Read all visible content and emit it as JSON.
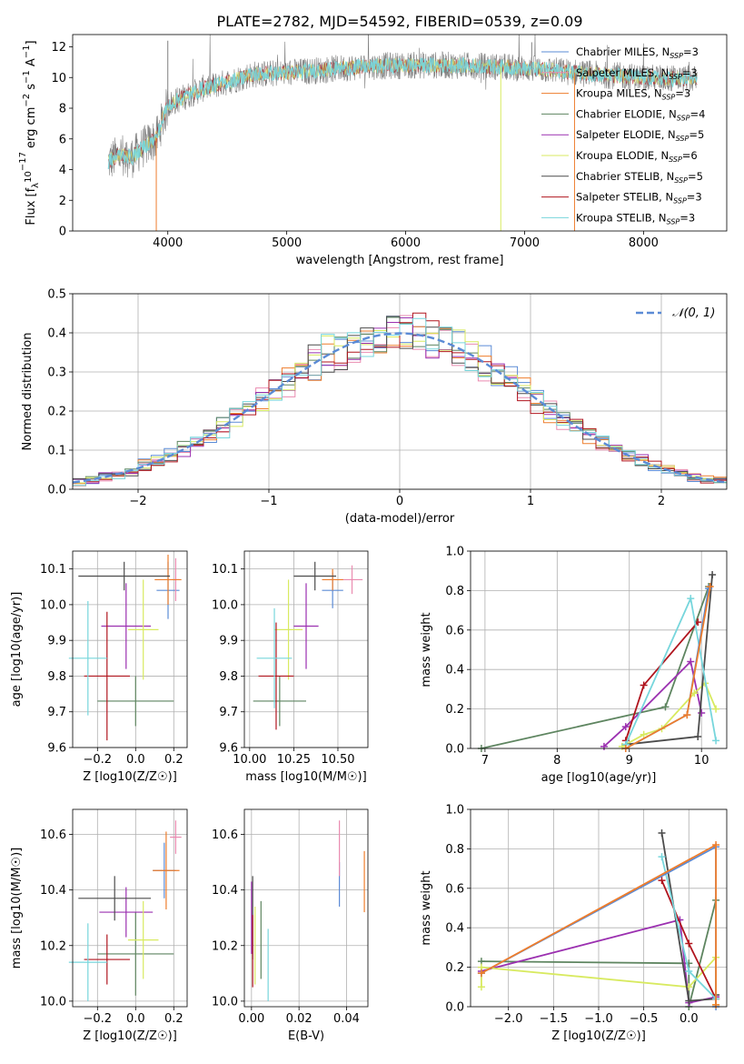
{
  "title": "PLATE=2782, MJD=54592, FIBERID=0539, z=0.09",
  "models": [
    {
      "name": "Chabrier MILES",
      "nssp": "3",
      "color": "#5b8bd6"
    },
    {
      "name": "Salpeter MILES",
      "nssp": "3",
      "color": "#ea8bb0"
    },
    {
      "name": "Kroupa MILES",
      "nssp": "3",
      "color": "#ee7d2c"
    },
    {
      "name": "Chabrier ELODIE",
      "nssp": "4",
      "color": "#5e8560"
    },
    {
      "name": "Salpeter ELODIE",
      "nssp": "5",
      "color": "#9b30b0"
    },
    {
      "name": "Kroupa ELODIE",
      "nssp": "6",
      "color": "#d8ea60"
    },
    {
      "name": "Chabrier STELIB",
      "nssp": "5",
      "color": "#4c4c4c"
    },
    {
      "name": "Salpeter STELIB",
      "nssp": "3",
      "color": "#b0151e"
    },
    {
      "name": "Kroupa STELIB",
      "nssp": "3",
      "color": "#77d6dc"
    }
  ],
  "chart_data": [
    {
      "id": "spectrum",
      "type": "line",
      "xlabel": "wavelength [Angstrom, rest frame]",
      "ylabel": "Flux [f_λ 10^-17 erg cm^-2 s^-1 A^-1]",
      "xlim": [
        3200,
        8700
      ],
      "ylim": [
        0,
        12.8
      ],
      "xticks": [
        4000,
        5000,
        6000,
        7000,
        8000
      ],
      "yticks": [
        0,
        2,
        4,
        6,
        8,
        10,
        12
      ],
      "continuum": {
        "x": [
          3500,
          3600,
          3700,
          3800,
          3900,
          4000,
          4100,
          4300,
          4500,
          4700,
          5000,
          5300,
          5600,
          6000,
          6400,
          6800,
          7200,
          7600,
          8000,
          8400
        ],
        "y": [
          4.5,
          5.0,
          4.8,
          5.5,
          6.0,
          8.2,
          8.6,
          9.3,
          9.7,
          10.2,
          10.3,
          10.5,
          10.7,
          10.8,
          10.8,
          10.7,
          10.5,
          10.2,
          10.0,
          9.9
        ]
      },
      "spikes": [
        {
          "x": 3903,
          "y": 0.0,
          "color": "#ee7d2c"
        },
        {
          "x": 4000,
          "y": 12.4,
          "color": "#808080"
        },
        {
          "x": 6800,
          "y": 0.0,
          "color": "#d8ea60"
        },
        {
          "x": 7420,
          "y": 0.0,
          "color": "#ee7d2c"
        },
        {
          "x": 7060,
          "y": 12.3,
          "color": "#808080"
        }
      ]
    },
    {
      "id": "residual-hist",
      "type": "step",
      "xlabel": "(data-model)/error",
      "ylabel": "Normed distribution",
      "xlim": [
        -2.5,
        2.5
      ],
      "ylim": [
        0,
        0.5
      ],
      "xticks": [
        -2,
        -1,
        0,
        1,
        2
      ],
      "yticks": [
        0.0,
        0.1,
        0.2,
        0.3,
        0.4,
        0.5
      ],
      "reference": {
        "label": "𝒩(0, 1)",
        "mean": 0,
        "sigma": 1,
        "color": "#5b8bd6"
      },
      "bin_width": 0.1
    },
    {
      "id": "age-vs-Z",
      "type": "errorbar",
      "xlabel": "Z [log10(Z/Z☉)]",
      "ylabel": "age  [log10(age/yr)]",
      "xlim": [
        -0.33,
        0.27
      ],
      "ylim": [
        9.6,
        10.15
      ],
      "xticks": [
        -0.2,
        0.0,
        0.2
      ],
      "yticks": [
        9.6,
        9.7,
        9.8,
        9.9,
        10.0,
        10.1
      ],
      "points": [
        {
          "x": 0.17,
          "y": 10.04,
          "xerr": 0.06,
          "yerr": 0.08,
          "model": 0
        },
        {
          "x": 0.21,
          "y": 10.07,
          "xerr": 0.02,
          "yerr": 0.06,
          "model": 1
        },
        {
          "x": 0.17,
          "y": 10.07,
          "xerr": 0.07,
          "yerr": 0.07,
          "model": 2
        },
        {
          "x": 0.0,
          "y": 9.73,
          "xerr": 0.2,
          "yerr": 0.07,
          "model": 3
        },
        {
          "x": -0.05,
          "y": 9.94,
          "xerr": 0.13,
          "yerr": 0.12,
          "model": 4
        },
        {
          "x": 0.04,
          "y": 9.93,
          "xerr": 0.08,
          "yerr": 0.14,
          "model": 5
        },
        {
          "x": -0.06,
          "y": 10.08,
          "xerr": 0.24,
          "yerr": 0.04,
          "model": 6
        },
        {
          "x": -0.15,
          "y": 9.8,
          "xerr": 0.12,
          "yerr": 0.18,
          "model": 7
        },
        {
          "x": -0.25,
          "y": 9.85,
          "xerr": 0.1,
          "yerr": 0.16,
          "model": 8
        }
      ]
    },
    {
      "id": "age-vs-mass",
      "type": "errorbar",
      "xlabel": "mass [log10(M/M☉)]",
      "ylabel": "",
      "xlim": [
        9.97,
        10.67
      ],
      "ylim": [
        9.6,
        10.15
      ],
      "xticks": [
        10.0,
        10.25,
        10.5
      ],
      "yticks": [
        9.6,
        9.7,
        9.8,
        9.9,
        10.0,
        10.1
      ],
      "points": [
        {
          "x": 10.47,
          "y": 10.04,
          "xerr": 0.06,
          "yerr": 0.05,
          "model": 0
        },
        {
          "x": 10.58,
          "y": 10.07,
          "xerr": 0.06,
          "yerr": 0.04,
          "model": 1
        },
        {
          "x": 10.47,
          "y": 10.07,
          "xerr": 0.06,
          "yerr": 0.03,
          "model": 2
        },
        {
          "x": 10.17,
          "y": 9.73,
          "xerr": 0.15,
          "yerr": 0.07,
          "model": 3
        },
        {
          "x": 10.32,
          "y": 9.94,
          "xerr": 0.07,
          "yerr": 0.12,
          "model": 4
        },
        {
          "x": 10.22,
          "y": 9.93,
          "xerr": 0.08,
          "yerr": 0.14,
          "model": 5
        },
        {
          "x": 10.37,
          "y": 10.08,
          "xerr": 0.12,
          "yerr": 0.04,
          "model": 6
        },
        {
          "x": 10.15,
          "y": 9.8,
          "xerr": 0.1,
          "yerr": 0.15,
          "model": 7
        },
        {
          "x": 10.14,
          "y": 9.85,
          "xerr": 0.1,
          "yerr": 0.14,
          "model": 8
        }
      ]
    },
    {
      "id": "weight-vs-age",
      "type": "line",
      "xlabel": "age  [log10(age/yr)]",
      "ylabel": "mass weight",
      "xlim": [
        6.8,
        10.35
      ],
      "ylim": [
        0,
        1.0
      ],
      "xticks": [
        7,
        8,
        9,
        10
      ],
      "yticks": [
        0.0,
        0.2,
        0.4,
        0.6,
        0.8,
        1.0
      ],
      "series": [
        {
          "model": 3,
          "x": [
            6.95,
            9.5,
            10.1
          ],
          "y": [
            0.0,
            0.21,
            0.82
          ]
        },
        {
          "model": 4,
          "x": [
            8.65,
            8.95,
            9.85,
            10.0
          ],
          "y": [
            0.01,
            0.11,
            0.44,
            0.18
          ]
        },
        {
          "model": 5,
          "x": [
            8.9,
            9.2,
            9.45,
            9.9,
            10.05,
            10.2
          ],
          "y": [
            0.01,
            0.07,
            0.1,
            0.28,
            0.33,
            0.2
          ]
        },
        {
          "model": 6,
          "x": [
            8.95,
            9.95,
            10.15
          ],
          "y": [
            0.02,
            0.06,
            0.88
          ]
        },
        {
          "model": 7,
          "x": [
            8.95,
            9.2,
            9.95
          ],
          "y": [
            0.04,
            0.32,
            0.64
          ]
        },
        {
          "model": 8,
          "x": [
            8.95,
            9.85,
            10.2
          ],
          "y": [
            0.02,
            0.76,
            0.04
          ]
        },
        {
          "model": 0,
          "x": [
            8.95,
            9.8,
            10.1
          ],
          "y": [
            0.0,
            0.17,
            0.81
          ]
        },
        {
          "model": 2,
          "x": [
            8.95,
            9.8,
            10.12
          ],
          "y": [
            0.0,
            0.17,
            0.82
          ]
        }
      ]
    },
    {
      "id": "mass-vs-Z",
      "type": "errorbar",
      "xlabel": "Z [log10(Z/Z☉)]",
      "ylabel": "mass [log10(M/M☉)]",
      "xlim": [
        -0.33,
        0.27
      ],
      "ylim": [
        9.98,
        10.69
      ],
      "xticks": [
        -0.2,
        0.0,
        0.2
      ],
      "yticks": [
        10.0,
        10.2,
        10.4,
        10.6
      ],
      "points": [
        {
          "x": 0.15,
          "y": 10.47,
          "xerr": 0.06,
          "yerr": 0.1,
          "model": 0
        },
        {
          "x": 0.21,
          "y": 10.59,
          "xerr": 0.03,
          "yerr": 0.06,
          "model": 1
        },
        {
          "x": 0.16,
          "y": 10.47,
          "xerr": 0.07,
          "yerr": 0.14,
          "model": 2
        },
        {
          "x": 0.0,
          "y": 10.17,
          "xerr": 0.2,
          "yerr": 0.15,
          "model": 3
        },
        {
          "x": -0.05,
          "y": 10.32,
          "xerr": 0.14,
          "yerr": 0.09,
          "model": 4
        },
        {
          "x": 0.04,
          "y": 10.22,
          "xerr": 0.08,
          "yerr": 0.14,
          "model": 5
        },
        {
          "x": -0.11,
          "y": 10.37,
          "xerr": 0.19,
          "yerr": 0.08,
          "model": 6
        },
        {
          "x": -0.15,
          "y": 10.15,
          "xerr": 0.12,
          "yerr": 0.09,
          "model": 7
        },
        {
          "x": -0.25,
          "y": 10.14,
          "xerr": 0.1,
          "yerr": 0.14,
          "model": 8
        }
      ]
    },
    {
      "id": "mass-vs-ebv",
      "type": "errorbar",
      "xlabel": "E(B-V)",
      "ylabel": "",
      "xlim": [
        -0.003,
        0.049
      ],
      "ylim": [
        9.98,
        10.69
      ],
      "xticks": [
        0.0,
        0.02,
        0.04
      ],
      "yticks": [
        10.0,
        10.2,
        10.4,
        10.6
      ],
      "points": [
        {
          "x": 0.037,
          "y": 10.42,
          "xerr": 0,
          "yerr": 0.08,
          "model": 0
        },
        {
          "x": 0.037,
          "y": 10.55,
          "xerr": 0,
          "yerr": 0.1,
          "model": 1
        },
        {
          "x": 0.0475,
          "y": 10.43,
          "xerr": 0,
          "yerr": 0.11,
          "model": 2
        },
        {
          "x": 0.004,
          "y": 10.22,
          "xerr": 0,
          "yerr": 0.14,
          "model": 3
        },
        {
          "x": 0.0,
          "y": 10.3,
          "xerr": 0,
          "yerr": 0.13,
          "model": 4
        },
        {
          "x": 0.0015,
          "y": 10.2,
          "xerr": 0,
          "yerr": 0.14,
          "model": 5
        },
        {
          "x": 0.0005,
          "y": 10.3,
          "xerr": 0,
          "yerr": 0.15,
          "model": 6
        },
        {
          "x": 0.0005,
          "y": 10.18,
          "xerr": 0,
          "yerr": 0.13,
          "model": 7
        },
        {
          "x": 0.007,
          "y": 10.13,
          "xerr": 0,
          "yerr": 0.13,
          "model": 8
        }
      ]
    },
    {
      "id": "weight-vs-Z",
      "type": "line",
      "xlabel": "Z [log10(Z/Z☉)]",
      "ylabel": "mass weight",
      "xlim": [
        -2.42,
        0.42
      ],
      "ylim": [
        0,
        1.0
      ],
      "xticks": [
        -2.0,
        -1.5,
        -1.0,
        -0.5,
        0.0
      ],
      "yticks": [
        0.0,
        0.2,
        0.4,
        0.6,
        0.8,
        1.0
      ],
      "series": [
        {
          "model": 3,
          "x": [
            -2.3,
            0.0,
            0.0,
            0.3
          ],
          "y": [
            0.23,
            0.22,
            0.0,
            0.54
          ]
        },
        {
          "model": 4,
          "x": [
            -2.3,
            -0.1,
            0.0,
            0.3
          ],
          "y": [
            0.18,
            0.44,
            0.02,
            0.05
          ]
        },
        {
          "model": 5,
          "x": [
            -2.3,
            -2.3,
            0.0,
            0.3,
            0.3
          ],
          "y": [
            0.1,
            0.2,
            0.1,
            0.25,
            0.01
          ]
        },
        {
          "model": 6,
          "x": [
            -0.3,
            0.0,
            0.3,
            0.3
          ],
          "y": [
            0.88,
            0.03,
            0.04,
            0.06
          ]
        },
        {
          "model": 7,
          "x": [
            -0.3,
            0.0,
            0.3
          ],
          "y": [
            0.64,
            0.32,
            0.04
          ]
        },
        {
          "model": 8,
          "x": [
            -0.3,
            0.0,
            0.3
          ],
          "y": [
            0.76,
            0.18,
            0.04
          ]
        },
        {
          "model": 0,
          "x": [
            -2.3,
            0.3,
            0.3
          ],
          "y": [
            0.17,
            0.81,
            0.0
          ]
        },
        {
          "model": 2,
          "x": [
            -2.3,
            0.3,
            0.3
          ],
          "y": [
            0.17,
            0.82,
            0.01
          ]
        }
      ]
    }
  ]
}
